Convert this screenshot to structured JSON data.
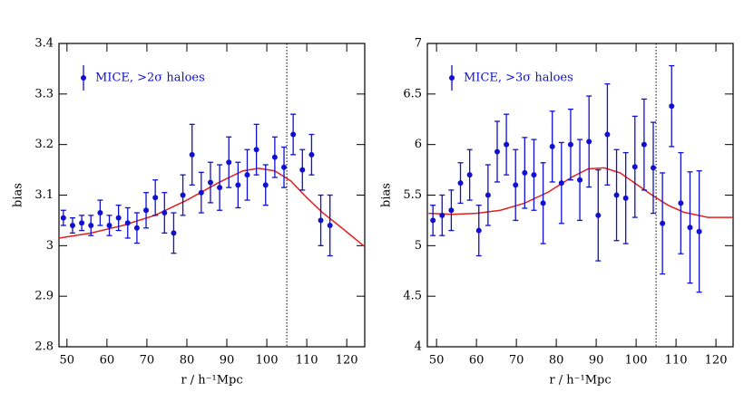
{
  "chart_data": [
    {
      "type": "scatter",
      "xlabel": "r / h⁻¹Mpc",
      "ylabel": "bias",
      "xlim": [
        48,
        124.5
      ],
      "ylim": [
        2.8,
        3.4
      ],
      "xticks": [
        50,
        60,
        70,
        80,
        90,
        100,
        110,
        120
      ],
      "yticks": [
        2.8,
        2.9,
        3,
        3.1,
        3.2,
        3.3,
        3.4
      ],
      "vline": 105,
      "series": [
        {
          "name": "MICE, >2σ haloes",
          "color": "#1010d0",
          "x": [
            49.1,
            51.4,
            53.7,
            56,
            58.3,
            60.6,
            62.9,
            65.2,
            67.5,
            69.8,
            72.1,
            74.4,
            76.7,
            79,
            81.3,
            83.6,
            85.9,
            88.2,
            90.5,
            92.8,
            95.1,
            97.4,
            99.7,
            102,
            104.3,
            106.6,
            108.9,
            111.2,
            113.5,
            115.8
          ],
          "values": [
            3.055,
            3.04,
            3.045,
            3.04,
            3.065,
            3.04,
            3.055,
            3.045,
            3.035,
            3.07,
            3.095,
            3.065,
            3.025,
            3.1,
            3.18,
            3.105,
            3.125,
            3.115,
            3.165,
            3.12,
            3.14,
            3.19,
            3.12,
            3.175,
            3.155,
            3.22,
            3.15,
            3.18,
            3.05,
            3.04
          ],
          "errors": [
            0.015,
            0.015,
            0.015,
            0.02,
            0.025,
            0.02,
            0.025,
            0.03,
            0.03,
            0.035,
            0.035,
            0.04,
            0.04,
            0.04,
            0.06,
            0.04,
            0.04,
            0.045,
            0.05,
            0.045,
            0.05,
            0.05,
            0.04,
            0.04,
            0.04,
            0.04,
            0.04,
            0.04,
            0.05,
            0.06
          ]
        }
      ],
      "curve": {
        "color": "#e02020",
        "x": [
          48,
          56,
          64,
          72,
          80,
          88,
          94,
          98,
          102,
          106,
          110,
          114,
          118,
          124.5
        ],
        "values": [
          3.015,
          3.025,
          3.04,
          3.06,
          3.09,
          3.125,
          3.148,
          3.153,
          3.148,
          3.128,
          3.095,
          3.065,
          3.04,
          2.998
        ]
      }
    },
    {
      "type": "scatter",
      "xlabel": "r / h⁻¹Mpc",
      "ylabel": "bias",
      "xlim": [
        47.7,
        124.3
      ],
      "ylim": [
        4,
        7
      ],
      "xticks": [
        50,
        60,
        70,
        80,
        90,
        100,
        110,
        120
      ],
      "yticks": [
        4,
        4.5,
        5,
        5.5,
        6,
        6.5,
        7
      ],
      "vline": 105,
      "series": [
        {
          "name": "MICE, >3σ haloes",
          "color": "#1010d0",
          "x": [
            49.1,
            51.4,
            53.7,
            56,
            58.3,
            60.6,
            62.9,
            65.2,
            67.5,
            69.8,
            72.1,
            74.4,
            76.7,
            79,
            81.3,
            83.6,
            85.9,
            88.2,
            90.5,
            92.8,
            95.1,
            97.4,
            99.7,
            102,
            104.3,
            106.6,
            108.9,
            111.2,
            113.5,
            115.8
          ],
          "values": [
            5.25,
            5.3,
            5.35,
            5.62,
            5.7,
            5.15,
            5.5,
            5.93,
            6.0,
            5.6,
            5.72,
            5.7,
            5.42,
            5.98,
            5.62,
            6.0,
            5.65,
            6.03,
            5.3,
            6.1,
            5.5,
            5.47,
            5.78,
            6.0,
            5.77,
            5.22,
            6.38,
            5.42,
            5.18,
            5.14
          ],
          "errors": [
            0.15,
            0.2,
            0.2,
            0.2,
            0.25,
            0.25,
            0.3,
            0.3,
            0.3,
            0.35,
            0.35,
            0.35,
            0.4,
            0.35,
            0.4,
            0.35,
            0.4,
            0.45,
            0.45,
            0.5,
            0.45,
            0.45,
            0.5,
            0.45,
            0.45,
            0.5,
            0.4,
            0.5,
            0.55,
            0.6
          ]
        }
      ],
      "curve": {
        "color": "#e02020",
        "x": [
          48,
          54,
          60,
          66,
          72,
          78,
          84,
          88,
          92,
          96,
          100,
          104,
          108,
          112,
          118,
          124.3
        ],
        "values": [
          5.32,
          5.31,
          5.32,
          5.35,
          5.42,
          5.53,
          5.68,
          5.76,
          5.77,
          5.72,
          5.61,
          5.5,
          5.4,
          5.33,
          5.28,
          5.28
        ]
      }
    }
  ]
}
